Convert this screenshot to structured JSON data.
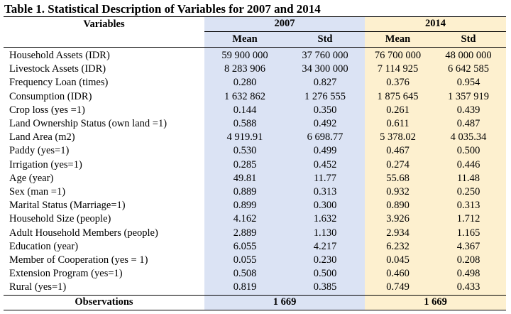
{
  "title": "Table 1. Statistical Description of Variables for 2007 and 2014",
  "header": {
    "variables_label": "Variables",
    "year1": "2007",
    "year2": "2014",
    "mean_label": "Mean",
    "std_label": "Std"
  },
  "rows": [
    {
      "label": "Household Assets (IDR)",
      "m2007": "59 900 000",
      "s2007": "37 760 000",
      "m2014": "76 700 000",
      "s2014": "48 000 000"
    },
    {
      "label": "Livestock Assets (IDR)",
      "m2007": "8 283 906",
      "s2007": "34 300 000",
      "m2014": "7 114 925",
      "s2014": "6 642 585"
    },
    {
      "label": "Frequency Loan (times)",
      "m2007": "0.280",
      "s2007": "0.827",
      "m2014": "0.376",
      "s2014": "0.954"
    },
    {
      "label": "Consumption (IDR)",
      "m2007": "1 632 862",
      "s2007": "1 276 555",
      "m2014": "1 875 645",
      "s2014": "1 357 919"
    },
    {
      "label": "Crop loss (yes =1)",
      "m2007": "0.144",
      "s2007": "0.350",
      "m2014": "0.261",
      "s2014": "0.439"
    },
    {
      "label": "Land Ownership Status (own land =1)",
      "m2007": "0.588",
      "s2007": "0.492",
      "m2014": "0.611",
      "s2014": "0.487"
    },
    {
      "label": "Land Area (m2)",
      "m2007": "4 919.91",
      "s2007": "6 698.77",
      "m2014": "5 378.02",
      "s2014": "4 035.34"
    },
    {
      "label": "Paddy (yes=1)",
      "m2007": "0.530",
      "s2007": "0.499",
      "m2014": "0.467",
      "s2014": "0.500"
    },
    {
      "label": "Irrigation (yes=1)",
      "m2007": "0.285",
      "s2007": "0.452",
      "m2014": "0.274",
      "s2014": "0.446"
    },
    {
      "label": "Age (year)",
      "m2007": "49.81",
      "s2007": "11.77",
      "m2014": "55.68",
      "s2014": "11.48"
    },
    {
      "label": "Sex (man =1)",
      "m2007": "0.889",
      "s2007": "0.313",
      "m2014": "0.932",
      "s2014": "0.250"
    },
    {
      "label": "Marital Status (Marriage=1)",
      "m2007": "0.899",
      "s2007": "0.300",
      "m2014": "0.890",
      "s2014": "0.313"
    },
    {
      "label": "Household Size (people)",
      "m2007": "4.162",
      "s2007": "1.632",
      "m2014": "3.926",
      "s2014": "1.712"
    },
    {
      "label": "Adult Household Members (people)",
      "m2007": "2.889",
      "s2007": "1.130",
      "m2014": "2.934",
      "s2014": "1.165"
    },
    {
      "label": "Education (year)",
      "m2007": "6.055",
      "s2007": "4.217",
      "m2014": "6.232",
      "s2014": "4.367"
    },
    {
      "label": "Member of Cooperation (yes = 1)",
      "m2007": "0.055",
      "s2007": "0.230",
      "m2014": "0.045",
      "s2014": "0.208"
    },
    {
      "label": "Extension Program (yes=1)",
      "m2007": "0.508",
      "s2007": "0.500",
      "m2014": "0.460",
      "s2014": "0.498"
    },
    {
      "label": "Rural (yes=1)",
      "m2007": "0.819",
      "s2007": "0.385",
      "m2014": "0.749",
      "s2014": "0.433"
    }
  ],
  "observations": {
    "label": "Observations",
    "n2007": "1 669",
    "n2014": "1 669"
  },
  "colors": {
    "col_2007_bg": "#dbe3f4",
    "col_2014_bg": "#fdf0cf"
  }
}
